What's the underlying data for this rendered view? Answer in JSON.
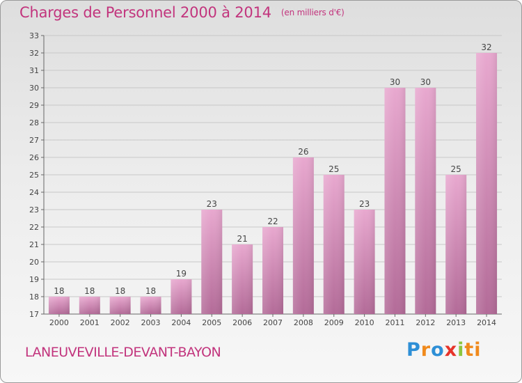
{
  "header": {
    "title": "Charges de Personnel 2000 à 2014",
    "subtitle": "(en milliers d'€)"
  },
  "footer": {
    "commune": "LANEUVEVILLE-DEVANT-BAYON",
    "logo_text": "Proxiti"
  },
  "colors": {
    "title": "#c2347d",
    "bar_top": "#e8a8cf",
    "bar_bottom": "#b36b98",
    "grid": "#c8c8c8"
  },
  "chart_data": {
    "type": "bar",
    "categories": [
      "2000",
      "2001",
      "2002",
      "2003",
      "2004",
      "2005",
      "2006",
      "2007",
      "2008",
      "2009",
      "2010",
      "2011",
      "2012",
      "2013",
      "2014"
    ],
    "values": [
      18,
      18,
      18,
      18,
      19,
      23,
      21,
      22,
      26,
      25,
      23,
      30,
      30,
      25,
      32
    ],
    "ylim": [
      17,
      33
    ],
    "yticks": [
      17,
      18,
      19,
      20,
      21,
      22,
      23,
      24,
      25,
      26,
      27,
      28,
      29,
      30,
      31,
      32,
      33
    ],
    "grid": true,
    "legend": "none"
  }
}
